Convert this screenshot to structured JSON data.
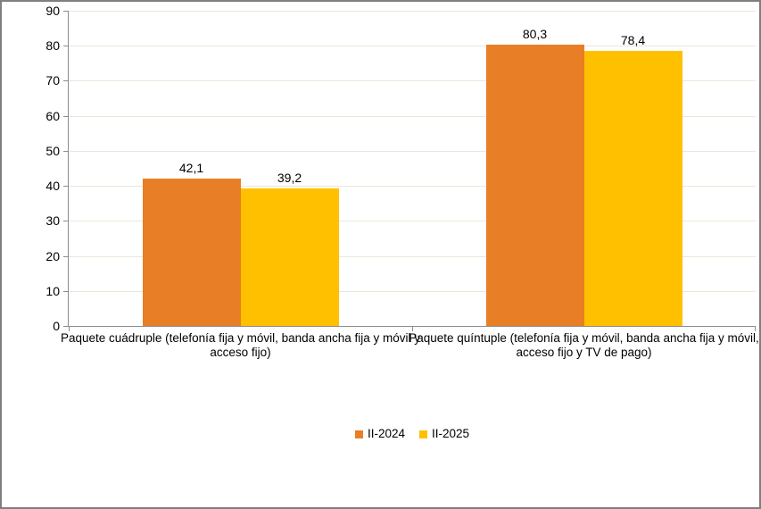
{
  "frame": {
    "border_color": "#7F7F7F",
    "background_color": "#FFFFFF"
  },
  "chart_data": {
    "type": "bar",
    "title": "",
    "xlabel": "",
    "ylabel": "",
    "categories": [
      "Paquete cuádruple (telefonía fija y móvil, banda ancha fija y móvil y acceso fijo)",
      "Paquete quíntuple (telefonía fija y móvil, banda ancha fija y móvil, acceso fijo y TV de pago)"
    ],
    "series": [
      {
        "name": "II-2024",
        "color": "#E87E25",
        "values": [
          42.1,
          80.3
        ],
        "value_labels": [
          "42,1",
          "80,3"
        ]
      },
      {
        "name": "II-2025",
        "color": "#FFC000",
        "values": [
          39.2,
          78.4
        ],
        "value_labels": [
          "39,2",
          "78,4"
        ]
      }
    ],
    "y_axis": {
      "min": 0,
      "max": 90,
      "tick_interval": 10,
      "tick_labels": [
        "90",
        "80",
        "70",
        "60",
        "50",
        "40",
        "30",
        "20",
        "10",
        "0"
      ]
    },
    "grid": true,
    "gridline_color": "#EAE6D8",
    "axis_color": "#8C8C8C",
    "legend": {
      "position": "bottom",
      "items": [
        "II-2024",
        "II-2025"
      ]
    }
  }
}
